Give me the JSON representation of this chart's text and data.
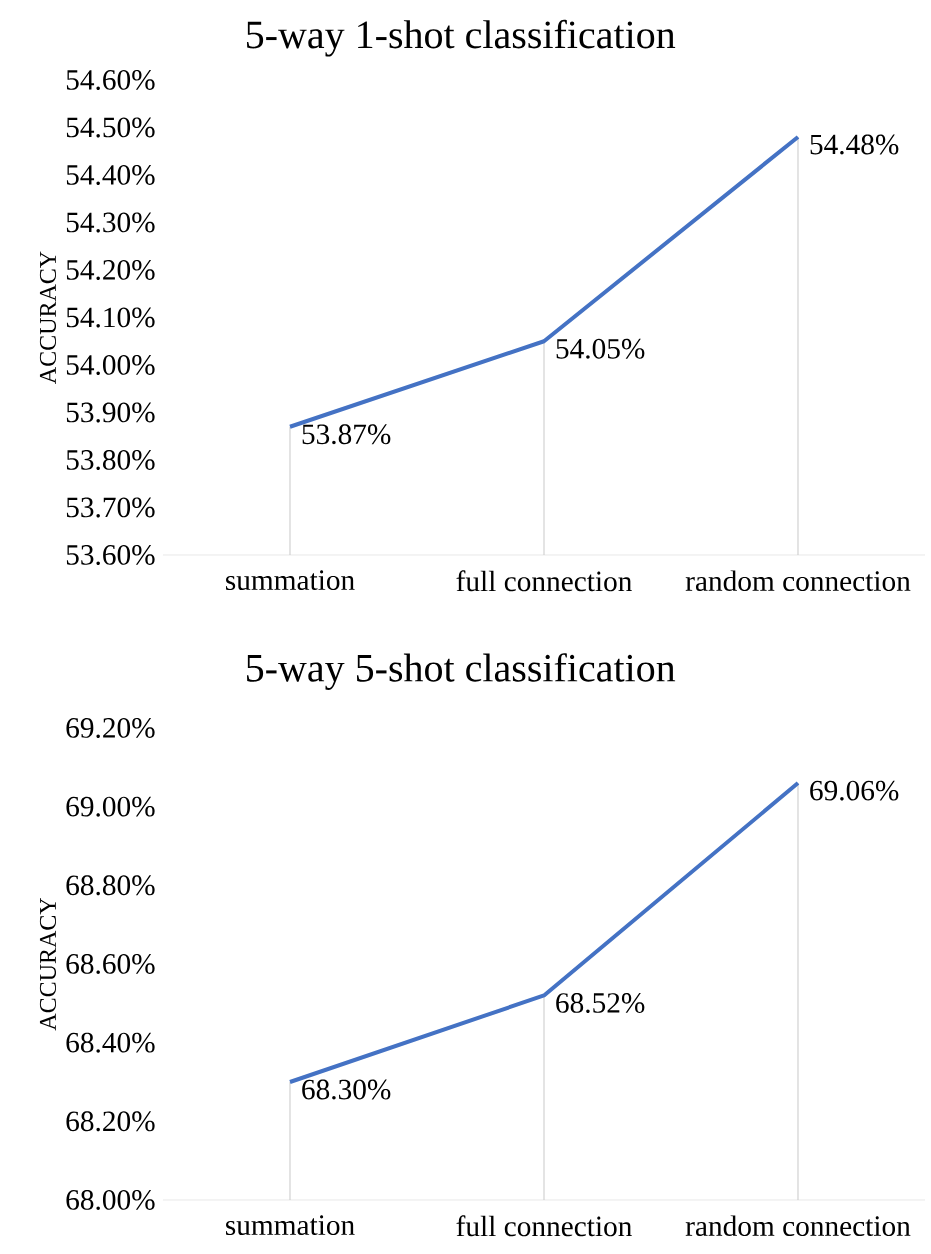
{
  "chart_data": [
    {
      "type": "line",
      "title": "5-way 1-shot classification",
      "ylabel": "ACCURACY",
      "categories": [
        "summation",
        "full connection",
        "random connection"
      ],
      "values": [
        53.87,
        54.05,
        54.48
      ],
      "value_labels": [
        "53.87%",
        "54.05%",
        "54.48%"
      ],
      "color": "#4472c4",
      "ylim": [
        53.6,
        54.6
      ],
      "yticks": [
        {
          "value": 53.6,
          "label": "53.60%"
        },
        {
          "value": 53.7,
          "label": "53.70%"
        },
        {
          "value": 53.8,
          "label": "53.80%"
        },
        {
          "value": 53.9,
          "label": "53.90%"
        },
        {
          "value": 54.0,
          "label": "54.00%"
        },
        {
          "value": 54.1,
          "label": "54.10%"
        },
        {
          "value": 54.2,
          "label": "54.20%"
        },
        {
          "value": 54.3,
          "label": "54.30%"
        },
        {
          "value": 54.4,
          "label": "54.40%"
        },
        {
          "value": 54.5,
          "label": "54.50%"
        },
        {
          "value": 54.6,
          "label": "54.60%"
        }
      ]
    },
    {
      "type": "line",
      "title": "5-way 5-shot classification",
      "ylabel": "ACCURACY",
      "categories": [
        "summation",
        "full connection",
        "random connection"
      ],
      "values": [
        68.3,
        68.52,
        69.06
      ],
      "value_labels": [
        "68.30%",
        "68.52%",
        "69.06%"
      ],
      "color": "#4472c4",
      "ylim": [
        68.0,
        69.2
      ],
      "yticks": [
        {
          "value": 68.0,
          "label": "68.00%"
        },
        {
          "value": 68.2,
          "label": "68.20%"
        },
        {
          "value": 68.4,
          "label": "68.40%"
        },
        {
          "value": 68.6,
          "label": "68.60%"
        },
        {
          "value": 68.8,
          "label": "68.80%"
        },
        {
          "value": 69.0,
          "label": "69.00%"
        },
        {
          "value": 69.2,
          "label": "69.20%"
        }
      ]
    }
  ]
}
